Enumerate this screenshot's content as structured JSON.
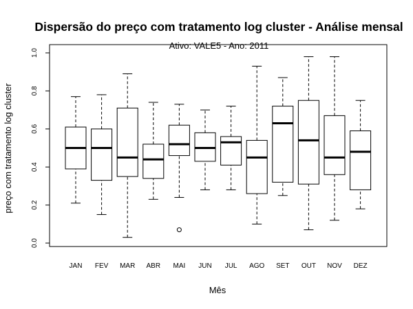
{
  "chart_data": {
    "type": "boxplot",
    "title": "Dispersão do  preço com tratamento log cluster  - Análise mensal",
    "subtitle": "Ativo: VALE5 - Ano: 2011",
    "xlabel": "Mês",
    "ylabel": "preço com tratamento log cluster",
    "ylim": [
      0,
      1.0
    ],
    "yticks": [
      "0.0",
      "0.2",
      "0.4",
      "0.6",
      "0.8",
      "1.0"
    ],
    "categories": [
      "JAN",
      "FEV",
      "MAR",
      "ABR",
      "MAI",
      "JUN",
      "JUL",
      "AGO",
      "SET",
      "OUT",
      "NOV",
      "DEZ"
    ],
    "boxes": [
      {
        "min": 0.21,
        "q1": 0.39,
        "median": 0.5,
        "q3": 0.61,
        "max": 0.77,
        "outliers": []
      },
      {
        "min": 0.15,
        "q1": 0.33,
        "median": 0.5,
        "q3": 0.6,
        "max": 0.78,
        "outliers": []
      },
      {
        "min": 0.03,
        "q1": 0.35,
        "median": 0.45,
        "q3": 0.71,
        "max": 0.89,
        "outliers": []
      },
      {
        "min": 0.23,
        "q1": 0.34,
        "median": 0.44,
        "q3": 0.52,
        "max": 0.74,
        "outliers": []
      },
      {
        "min": 0.24,
        "q1": 0.46,
        "median": 0.52,
        "q3": 0.62,
        "max": 0.73,
        "outliers": [
          0.07
        ]
      },
      {
        "min": 0.28,
        "q1": 0.43,
        "median": 0.5,
        "q3": 0.58,
        "max": 0.7,
        "outliers": []
      },
      {
        "min": 0.28,
        "q1": 0.41,
        "median": 0.53,
        "q3": 0.56,
        "max": 0.72,
        "outliers": []
      },
      {
        "min": 0.1,
        "q1": 0.26,
        "median": 0.45,
        "q3": 0.54,
        "max": 0.93,
        "outliers": []
      },
      {
        "min": 0.25,
        "q1": 0.32,
        "median": 0.63,
        "q3": 0.72,
        "max": 0.87,
        "outliers": []
      },
      {
        "min": 0.07,
        "q1": 0.31,
        "median": 0.54,
        "q3": 0.75,
        "max": 0.98,
        "outliers": []
      },
      {
        "min": 0.12,
        "q1": 0.36,
        "median": 0.45,
        "q3": 0.67,
        "max": 0.98,
        "outliers": []
      },
      {
        "min": 0.18,
        "q1": 0.28,
        "median": 0.48,
        "q3": 0.59,
        "max": 0.75,
        "outliers": []
      }
    ]
  }
}
